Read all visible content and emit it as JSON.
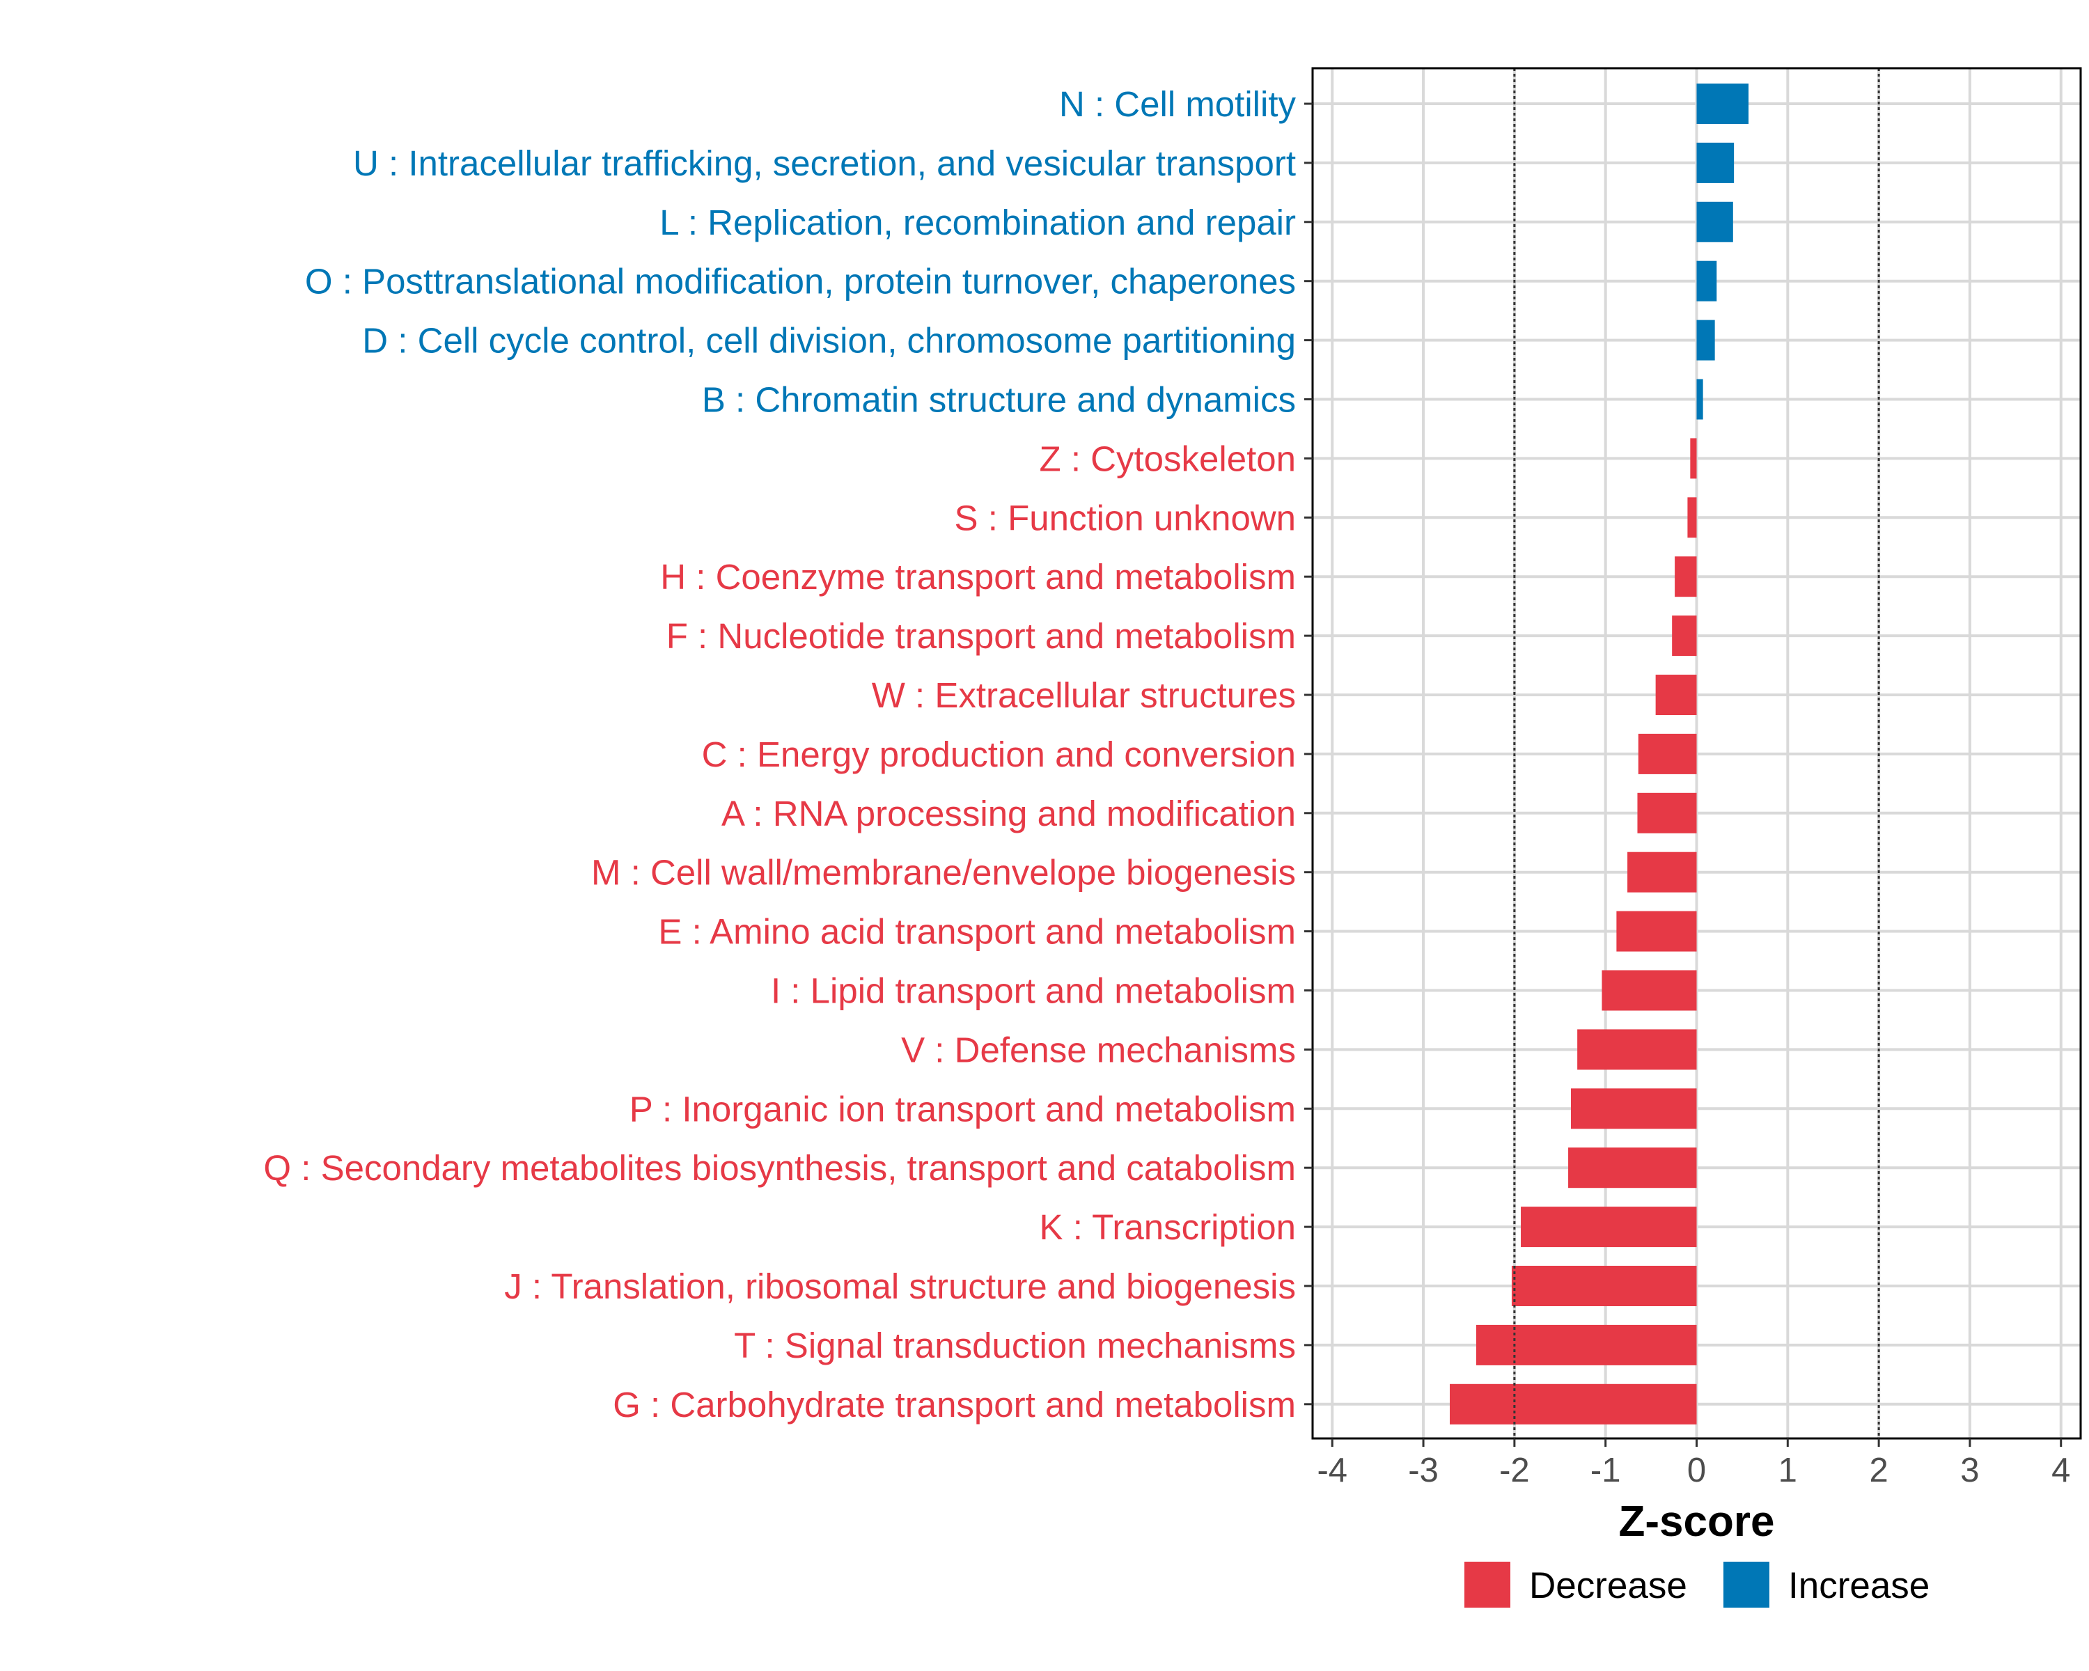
{
  "chart_data": {
    "type": "bar",
    "orientation": "horizontal",
    "categories": [
      "N : Cell motility",
      "U : Intracellular trafficking, secretion, and vesicular transport",
      "L : Replication, recombination and repair",
      "O : Posttranslational modification, protein turnover, chaperones",
      "D : Cell cycle control, cell division, chromosome partitioning",
      "B : Chromatin structure and dynamics",
      "Z : Cytoskeleton",
      "S : Function unknown",
      "H : Coenzyme transport and metabolism",
      "F : Nucleotide transport and metabolism",
      "W : Extracellular structures",
      "C : Energy production and conversion",
      "A : RNA processing and modification",
      "M : Cell wall/membrane/envelope biogenesis",
      "E : Amino acid transport and metabolism",
      "I : Lipid transport and metabolism",
      "V : Defense mechanisms",
      "P : Inorganic ion transport and metabolism",
      "Q : Secondary metabolites biosynthesis, transport and catabolism",
      "K : Transcription",
      "J : Translation, ribosomal structure and biogenesis",
      "T : Signal transduction mechanisms",
      "G : Carbohydrate transport and metabolism"
    ],
    "values": [
      0.57,
      0.41,
      0.4,
      0.22,
      0.2,
      0.07,
      -0.07,
      -0.1,
      -0.24,
      -0.27,
      -0.45,
      -0.64,
      -0.65,
      -0.76,
      -0.88,
      -1.04,
      -1.31,
      -1.38,
      -1.41,
      -1.93,
      -2.03,
      -2.42,
      -2.71
    ],
    "groups": [
      "Increase",
      "Increase",
      "Increase",
      "Increase",
      "Increase",
      "Increase",
      "Decrease",
      "Decrease",
      "Decrease",
      "Decrease",
      "Decrease",
      "Decrease",
      "Decrease",
      "Decrease",
      "Decrease",
      "Decrease",
      "Decrease",
      "Decrease",
      "Decrease",
      "Decrease",
      "Decrease",
      "Decrease",
      "Decrease"
    ],
    "xlabel": "Z-score",
    "ylabel": "",
    "xlim": [
      -4,
      4
    ],
    "xticks": [
      -4,
      -3,
      -2,
      -1,
      0,
      1,
      2,
      3,
      4
    ],
    "xtick_labels": [
      "-4",
      "-3",
      "-2",
      "-1",
      "0",
      "1",
      "2",
      "3",
      "4"
    ],
    "reference_lines": [
      -2,
      2
    ],
    "grid": true,
    "legend": {
      "placement": "bottom",
      "entries": [
        {
          "label": "Decrease",
          "color": "#e63946"
        },
        {
          "label": "Increase",
          "color": "#0077b6"
        }
      ]
    }
  },
  "colors": {
    "Decrease": "#e63946",
    "Increase": "#0077b6"
  }
}
